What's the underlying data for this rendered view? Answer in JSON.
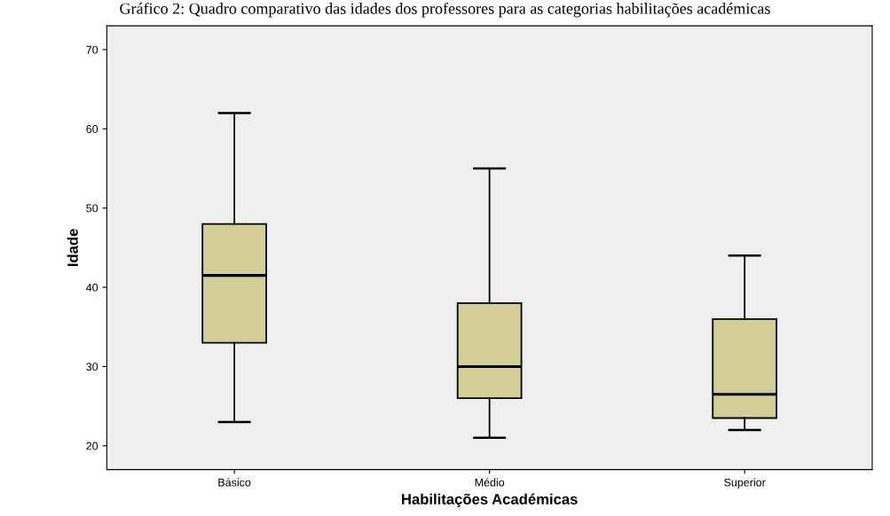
{
  "chart_data": {
    "type": "box",
    "title": "Gráfico 2: Quadro comparativo das idades dos professores para as categorias habilitações académicas",
    "xlabel": "Habilitações Académicas",
    "ylabel": "Idade",
    "categories": [
      "Básico",
      "Médio",
      "Superior"
    ],
    "color": "#d3ce97",
    "boxes": [
      {
        "low": 23,
        "q1": 33,
        "median": 41.5,
        "q3": 48,
        "high": 62
      },
      {
        "low": 21,
        "q1": 26,
        "median": 30,
        "q3": 38,
        "high": 55
      },
      {
        "low": 22,
        "q1": 23.5,
        "median": 26.5,
        "q3": 36,
        "high": 44
      }
    ],
    "ylim": [
      17,
      73
    ],
    "yticks": [
      20,
      30,
      40,
      50,
      60,
      70
    ],
    "grid": false
  }
}
